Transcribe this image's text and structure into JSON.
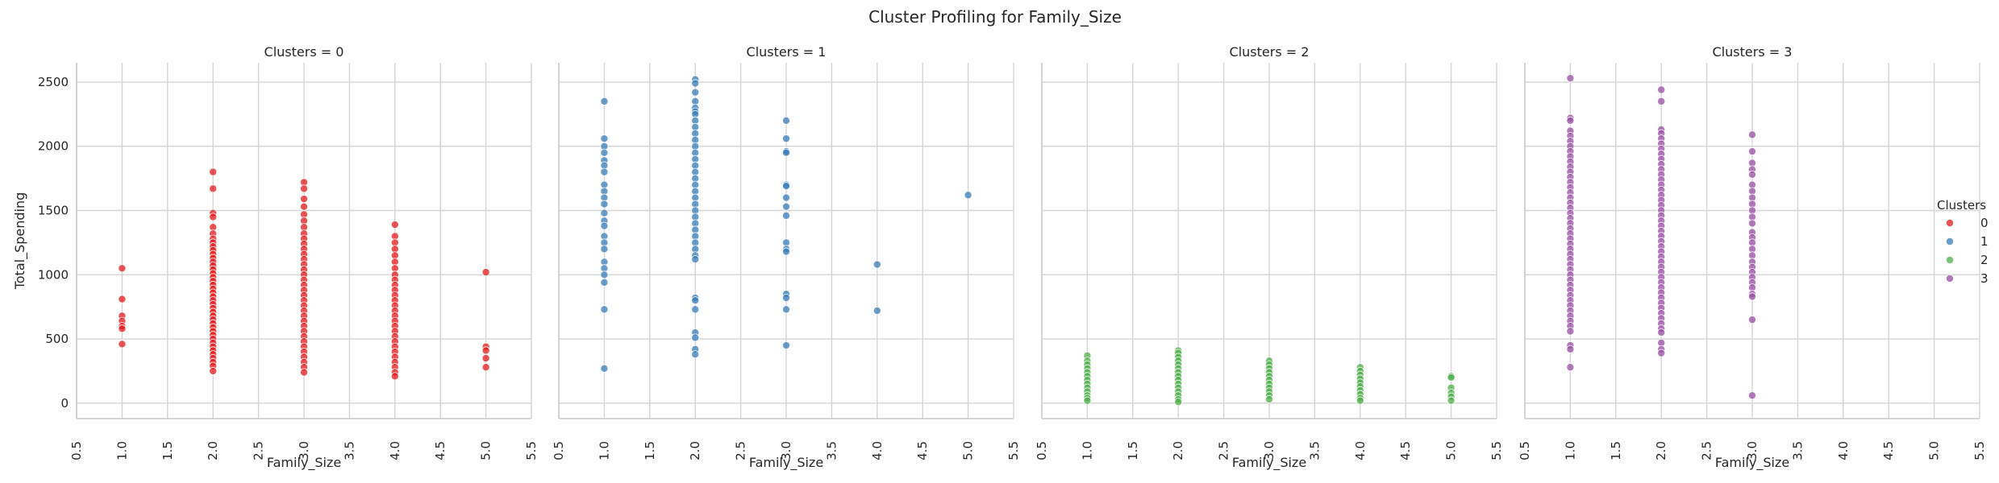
{
  "chart_data": {
    "type": "scatter",
    "title": "Cluster Profiling for Family_Size",
    "xlabel": "Family_Size",
    "ylabel": "Total_Spending",
    "xlim": [
      0.5,
      5.5
    ],
    "ylim": [
      -120,
      2650
    ],
    "x_ticks": [
      "0.5",
      "1.0",
      "1.5",
      "2.0",
      "2.5",
      "3.0",
      "3.5",
      "4.0",
      "4.5",
      "5.0",
      "5.5"
    ],
    "y_ticks": [
      "0",
      "500",
      "1000",
      "1500",
      "2000",
      "2500"
    ],
    "grid": true,
    "legend": {
      "title": "Clusters",
      "position": "right",
      "labels": [
        "0",
        "1",
        "2",
        "3"
      ]
    },
    "colors": [
      "#e41a1c",
      "#377eb8",
      "#4daf4a",
      "#984ea3"
    ],
    "facets": [
      {
        "title": "Clusters = 0",
        "cluster": "0",
        "series": [
          {
            "x": 1,
            "values": [
              1050,
              810,
              680,
              640,
              600,
              580,
              460
            ]
          },
          {
            "x": 2,
            "values": [
              1800,
              1670,
              1480,
              1450,
              1370,
              1320,
              1280,
              1250,
              1220,
              1190,
              1160,
              1130,
              1100,
              1070,
              1040,
              1010,
              980,
              950,
              920,
              890,
              860,
              830,
              800,
              770,
              740,
              710,
              680,
              650,
              620,
              590,
              560,
              530,
              500,
              470,
              440,
              410,
              380,
              350,
              320,
              290,
              250
            ]
          },
          {
            "x": 3,
            "values": [
              1720,
              1670,
              1590,
              1530,
              1470,
              1420,
              1370,
              1320,
              1280,
              1240,
              1200,
              1160,
              1120,
              1080,
              1040,
              1000,
              960,
              920,
              880,
              840,
              800,
              760,
              720,
              680,
              640,
              600,
              560,
              520,
              480,
              440,
              400,
              360,
              320,
              280,
              240
            ]
          },
          {
            "x": 4,
            "values": [
              1390,
              1300,
              1250,
              1200,
              1150,
              1100,
              1050,
              1000,
              960,
              920,
              880,
              840,
              800,
              760,
              720,
              680,
              640,
              600,
              560,
              520,
              480,
              440,
              400,
              360,
              320,
              280,
              240,
              210
            ]
          },
          {
            "x": 5,
            "values": [
              1020,
              440,
              410,
              350,
              280
            ]
          }
        ]
      },
      {
        "title": "Clusters = 1",
        "cluster": "1",
        "series": [
          {
            "x": 1,
            "values": [
              2350,
              2060,
              2000,
              1950,
              1890,
              1850,
              1800,
              1700,
              1650,
              1600,
              1550,
              1480,
              1420,
              1380,
              1300,
              1250,
              1200,
              1100,
              1050,
              1000,
              940,
              730,
              270
            ]
          },
          {
            "x": 2,
            "values": [
              2520,
              2490,
              2420,
              2350,
              2300,
              2270,
              2250,
              2200,
              2150,
              2100,
              2050,
              2000,
              1950,
              1900,
              1850,
              1800,
              1750,
              1700,
              1650,
              1600,
              1550,
              1500,
              1450,
              1400,
              1350,
              1300,
              1250,
              1200,
              1150,
              1120,
              820,
              800,
              730,
              550,
              510,
              420,
              380
            ]
          },
          {
            "x": 3,
            "values": [
              2200,
              2060,
              1960,
              1950,
              1700,
              1690,
              1600,
              1530,
              1460,
              1250,
              1200,
              1180,
              850,
              820,
              730,
              450
            ]
          },
          {
            "x": 4,
            "values": [
              1080,
              720
            ]
          },
          {
            "x": 5,
            "values": [
              1620
            ]
          }
        ]
      },
      {
        "title": "Clusters = 2",
        "cluster": "2",
        "series": [
          {
            "x": 1,
            "values": [
              370,
              330,
              300,
              270,
              240,
              210,
              180,
              150,
              120,
              90,
              60,
              40,
              20
            ]
          },
          {
            "x": 2,
            "values": [
              410,
              390,
              360,
              330,
              300,
              270,
              240,
              210,
              180,
              150,
              120,
              90,
              60,
              30,
              10
            ]
          },
          {
            "x": 3,
            "values": [
              330,
              300,
              270,
              240,
              210,
              180,
              150,
              120,
              90,
              60,
              30
            ]
          },
          {
            "x": 4,
            "values": [
              280,
              250,
              220,
              190,
              160,
              130,
              100,
              70,
              40,
              20
            ]
          },
          {
            "x": 5,
            "values": [
              210,
              200,
              120,
              80,
              50,
              20
            ]
          }
        ]
      },
      {
        "title": "Clusters = 3",
        "cluster": "3",
        "series": [
          {
            "x": 1,
            "values": [
              2530,
              2220,
              2200,
              2120,
              2080,
              2040,
              2000,
              1960,
              1920,
              1880,
              1840,
              1800,
              1760,
              1720,
              1680,
              1640,
              1600,
              1560,
              1520,
              1480,
              1440,
              1400,
              1360,
              1320,
              1280,
              1240,
              1200,
              1160,
              1120,
              1080,
              1040,
              1000,
              960,
              920,
              880,
              840,
              800,
              760,
              720,
              680,
              640,
              600,
              560,
              450,
              420,
              280
            ]
          },
          {
            "x": 2,
            "values": [
              2440,
              2350,
              2130,
              2100,
              2060,
              2020,
              1980,
              1940,
              1900,
              1860,
              1820,
              1780,
              1740,
              1700,
              1660,
              1620,
              1580,
              1540,
              1500,
              1460,
              1420,
              1380,
              1340,
              1300,
              1260,
              1220,
              1180,
              1140,
              1100,
              1060,
              1020,
              980,
              940,
              900,
              860,
              820,
              780,
              740,
              700,
              660,
              620,
              580,
              550,
              470,
              420,
              390
            ]
          },
          {
            "x": 3,
            "values": [
              2090,
              1960,
              1870,
              1820,
              1780,
              1700,
              1650,
              1600,
              1550,
              1500,
              1450,
              1400,
              1330,
              1290,
              1250,
              1200,
              1150,
              1100,
              1060,
              1020,
              980,
              940,
              900,
              850,
              830,
              650,
              60
            ]
          }
        ]
      }
    ]
  }
}
